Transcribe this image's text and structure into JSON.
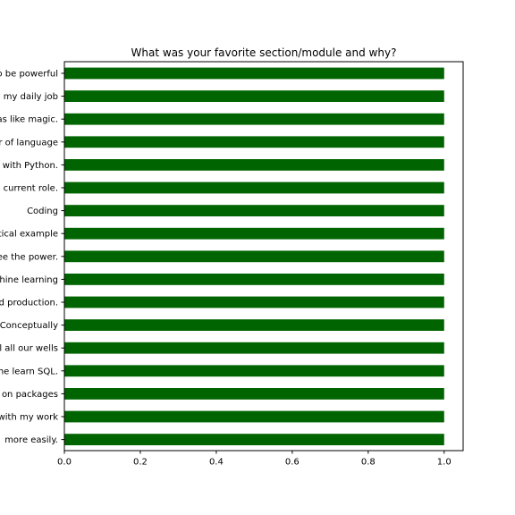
{
  "chart_data": {
    "type": "bar",
    "orientation": "horizontal",
    "title": "What was your favorite section/module and why?",
    "xlabel": "",
    "ylabel": "",
    "xlim": [
      0,
      1.05
    ],
    "xticks": [
      "0.0",
      "0.2",
      "0.4",
      "0.6",
      "0.8",
      "1.0"
    ],
    "grid": false,
    "legend": "none",
    "bar_color": "#006400",
    "categories": [
      "o be powerful",
      "my daily job",
      "as like magic.",
      "r of language",
      "with Python.",
      "current role.",
      "Coding",
      "tical example",
      "ee the power.",
      "hine learning",
      "d production.",
      "Conceptually",
      "l all our wells",
      "he learn SQL.",
      "on packages",
      "with my work",
      "more easily."
    ],
    "values": [
      1,
      1,
      1,
      1,
      1,
      1,
      1,
      1,
      1,
      1,
      1,
      1,
      1,
      1,
      1,
      1,
      1
    ]
  }
}
